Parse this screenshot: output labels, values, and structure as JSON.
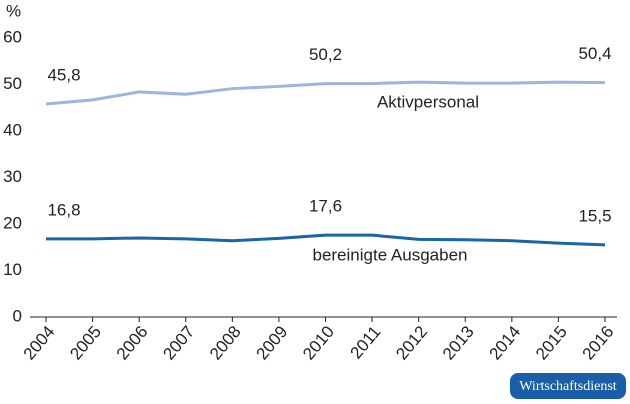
{
  "chart_data": {
    "type": "line",
    "y_label": "%",
    "categories": [
      "2004",
      "2005",
      "2006",
      "2007",
      "2008",
      "2009",
      "2010",
      "2011",
      "2012",
      "2013",
      "2014",
      "2015",
      "2016"
    ],
    "series": [
      {
        "name": "Aktivpersonal",
        "color": "#9cb6de",
        "values": [
          45.8,
          46.7,
          48.4,
          47.9,
          49.1,
          49.6,
          50.2,
          50.2,
          50.5,
          50.3,
          50.3,
          50.5,
          50.4
        ],
        "value_labels": [
          "45,8",
          null,
          null,
          null,
          null,
          null,
          "50,2",
          null,
          null,
          null,
          null,
          null,
          "50,4"
        ]
      },
      {
        "name": "bereinigte Ausgaben",
        "color": "#1a64a8",
        "values": [
          16.8,
          16.8,
          17.0,
          16.8,
          16.4,
          16.9,
          17.6,
          17.6,
          16.7,
          16.6,
          16.4,
          15.9,
          15.5
        ],
        "value_labels": [
          "16,8",
          null,
          null,
          null,
          null,
          null,
          "17,6",
          null,
          null,
          null,
          null,
          null,
          "15,5"
        ]
      }
    ],
    "ylim": [
      0,
      60
    ],
    "yticks": [
      0,
      10,
      20,
      30,
      40,
      50,
      60
    ],
    "grid": false
  },
  "badge": "Wirtschaftsdienst"
}
